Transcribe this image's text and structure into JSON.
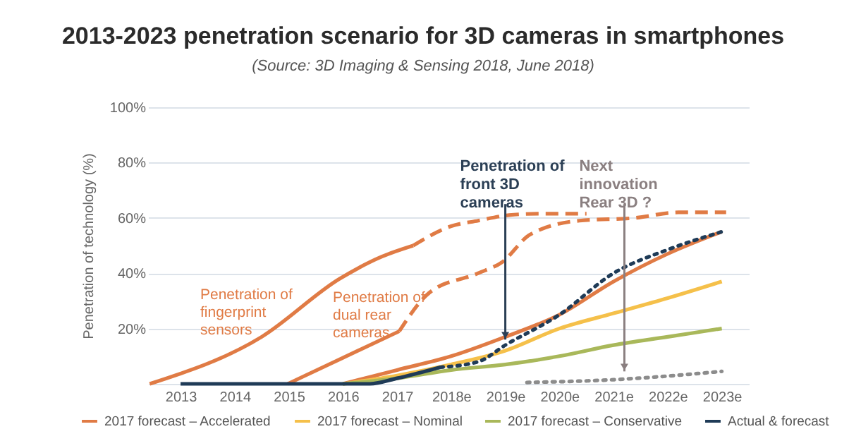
{
  "chart_data": {
    "type": "line",
    "title": "2013-2023 penetration scenario for 3D cameras in smartphones",
    "subtitle": "(Source: 3D Imaging & Sensing 2018, June 2018)",
    "ylabel": "Penetration of technology (%)",
    "xlim": [
      2012.4,
      2023.5
    ],
    "xticks": [
      2013,
      2014,
      2015,
      2016,
      2017,
      {
        "value": 2018,
        "label": "2018e"
      },
      {
        "value": 2019,
        "label": "2019e"
      },
      {
        "value": 2020,
        "label": "2020e"
      },
      {
        "value": 2021,
        "label": "2021e"
      },
      {
        "value": 2022,
        "label": "2022e"
      },
      {
        "value": 2023,
        "label": "2023e"
      }
    ],
    "ylim": [
      0,
      100
    ],
    "yticks": [
      {
        "value": 0,
        "label": null
      },
      {
        "value": 20,
        "label": "20%"
      },
      {
        "value": 40,
        "label": "40%"
      },
      {
        "value": 60,
        "label": "60%"
      },
      {
        "value": 80,
        "label": "80%"
      },
      {
        "value": 100,
        "label": "100%"
      }
    ],
    "grid": "y",
    "legend": "bottom",
    "marker": "none",
    "series": [
      {
        "color": "#e07b45",
        "line_style": "solid",
        "x": [
          2012.43,
          2014.5,
          2015.94,
          2016.72,
          2017.3
        ],
        "values": [
          0,
          17,
          38,
          46,
          50
        ]
      },
      {
        "color": "#e07b45",
        "line_style": "dashed",
        "x": [
          2017.3,
          2018,
          2018.5,
          2019.07,
          2019.6,
          2020.5
        ],
        "values": [
          50,
          57,
          59,
          61,
          61.5,
          61.5
        ]
      },
      {
        "color": "#e07b45",
        "line_style": "solid",
        "x": [
          2014.98,
          2017.04
        ],
        "values": [
          0,
          19
        ]
      },
      {
        "color": "#e07b45",
        "line_style": "dashed",
        "x": [
          2017.04,
          2017.6,
          2018.5,
          2018.94,
          2019.46,
          2020.37,
          2021.4,
          2022.2,
          2023.08
        ],
        "values": [
          19,
          33,
          40,
          44,
          54,
          59,
          60,
          62,
          62
        ]
      },
      {
        "name": "2017 forecast – Accelerated",
        "color": "#e07b45",
        "line_style": "solid",
        "x": [
          2016,
          2017,
          2018,
          2019,
          2020,
          2021,
          2022,
          2023
        ],
        "values": [
          0,
          5,
          10,
          17,
          25,
          37,
          47,
          55
        ]
      },
      {
        "name": "2017 forecast – Nominal",
        "color": "#f5c04a",
        "line_style": "solid",
        "x": [
          2016,
          2017,
          2018,
          2019,
          2020,
          2021,
          2022,
          2023
        ],
        "values": [
          0,
          3,
          7,
          12,
          20,
          25.5,
          31,
          37
        ]
      },
      {
        "name": "2017 forecast – Conservative",
        "color": "#a9b85a",
        "line_style": "solid",
        "x": [
          2016,
          2017,
          2018,
          2019,
          2020,
          2021,
          2022,
          2023
        ],
        "values": [
          0,
          2,
          5,
          7,
          10,
          14,
          17,
          20
        ]
      },
      {
        "name": "Actual & forecast",
        "color": "#1f3b57",
        "line_style": "solid",
        "x": [
          2013,
          2016.5,
          2017,
          2017.8
        ],
        "values": [
          0,
          0,
          2,
          6
        ]
      },
      {
        "color": "#1f3b57",
        "line_style": "dotted",
        "x": [
          2017.8,
          2018.5,
          2019,
          2020,
          2021,
          2022,
          2023
        ],
        "values": [
          6,
          8,
          14,
          25,
          40,
          48.5,
          55
        ]
      },
      {
        "color": "#8c8c8c",
        "line_style": "dotted",
        "x": [
          2019.4,
          2021,
          2023
        ],
        "values": [
          0.5,
          1.5,
          4.5
        ]
      }
    ],
    "annotations": [
      "Penetration of fingerprint sensors",
      "Penetration of dual rear cameras",
      {
        "text": "Penetration of front 3D cameras",
        "x": 2019,
        "y": 16
      },
      {
        "text": "Next innovation Rear 3D ?",
        "x": 2021.2,
        "y": 4.5
      }
    ]
  }
}
